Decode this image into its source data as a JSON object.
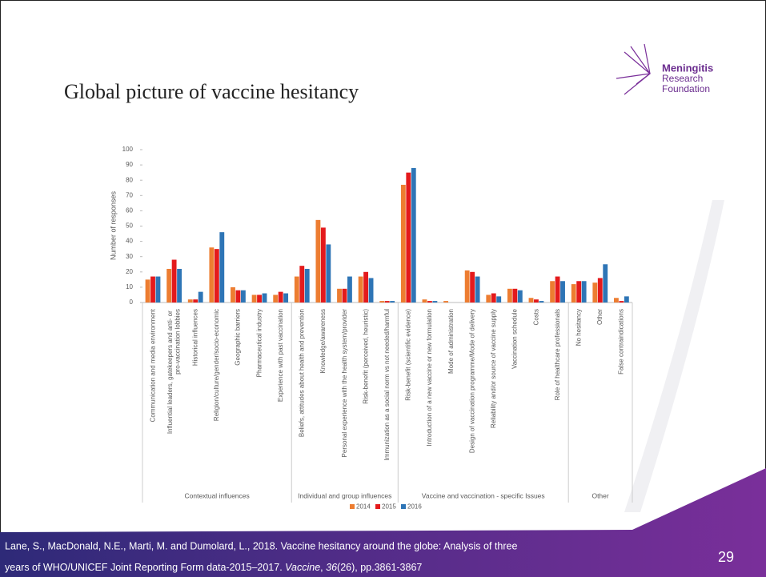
{
  "header": {
    "title": "Global picture of vaccine hesitancy",
    "logo": [
      "Meningitis",
      "Research",
      "Foundation"
    ]
  },
  "chart_data": {
    "type": "bar",
    "ylabel": "Number of responses",
    "ylim": [
      0,
      100
    ],
    "yticks": [
      0,
      10,
      20,
      30,
      40,
      50,
      60,
      70,
      80,
      90,
      100
    ],
    "grid": false,
    "legend": "bottom",
    "category_groups": [
      {
        "name": "Contextual influences",
        "categories": [
          "Communication and media environment",
          "Influential leaders, gatekeepers and anti- or pro-vaccination lobbies",
          "Historical influences",
          "Religion/culture/gender/socio-economic",
          "Geographic barriers",
          "Pharmaceutical industry",
          "Experience with past vaccination"
        ]
      },
      {
        "name": "Individual and group influences",
        "categories": [
          "Beliefs, attitudes about health and prevention",
          "Knowledge/awareness",
          "Personal experience with the health system/provider",
          "Risk-benefit (perceived, heuristic)",
          "Immunization as a social norm vs not needed/harmful"
        ]
      },
      {
        "name": "Vaccine and vaccination - specific Issues",
        "categories": [
          "Risk-benefit (scientific evidence)",
          "Introduction of a new vaccine or new formulation",
          "Mode of administration",
          "Design of vaccination programme/Mode of delivery",
          "Reliability and/or source of vaccine supply",
          "Vaccination schedule",
          "Costs",
          "Role of healthcare professionals"
        ]
      },
      {
        "name": "Other",
        "categories": [
          "No hesitancy",
          "Other",
          "False contraindications"
        ]
      }
    ],
    "series": [
      {
        "name": "2014",
        "color": "#ED7D31",
        "values": [
          15,
          22,
          2,
          36,
          10,
          5,
          5,
          17,
          54,
          9,
          17,
          1,
          77,
          2,
          1,
          21,
          5,
          9,
          3,
          14,
          12,
          13,
          3
        ]
      },
      {
        "name": "2015",
        "color": "#E41A1C",
        "values": [
          17,
          28,
          2,
          35,
          8,
          5,
          7,
          24,
          49,
          9,
          20,
          1,
          85,
          1,
          0,
          20,
          6,
          9,
          2,
          17,
          14,
          16,
          1
        ]
      },
      {
        "name": "2016",
        "color": "#2E75B6",
        "values": [
          17,
          22,
          7,
          46,
          8,
          6,
          6,
          22,
          38,
          17,
          16,
          1,
          88,
          1,
          0,
          17,
          4,
          8,
          1,
          14,
          14,
          25,
          4
        ]
      }
    ]
  },
  "footer": {
    "citation": [
      "Lane, S., MacDonald, N.E., Marti, M. and Dumolard, L., 2018. Vaccine hesitancy around the globe: Analysis of three",
      "years of WHO/UNICEF Joint Reporting Form data-2015–2017. ",
      "Vaccine",
      ", ",
      "36",
      "(26), pp.3861-3867"
    ],
    "page_number": "29"
  }
}
